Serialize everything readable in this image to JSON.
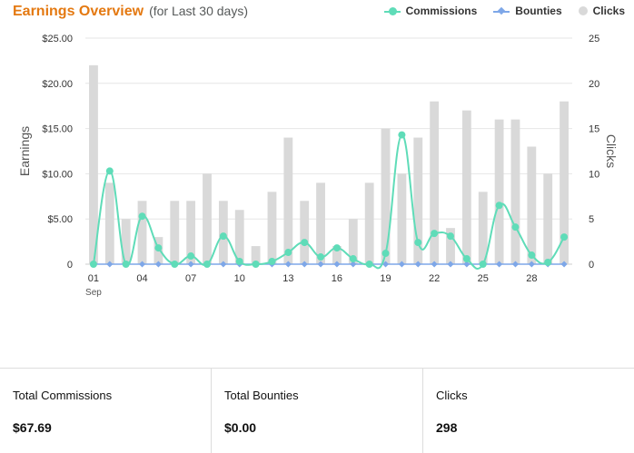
{
  "header": {
    "title": "Earnings Overview",
    "subtitle": "(for Last 30 days)"
  },
  "legend": [
    {
      "label": "Commissions",
      "color": "#5fdcb8",
      "symbol": "line-dot"
    },
    {
      "label": "Bounties",
      "color": "#7ea7e8",
      "symbol": "line-diamond"
    },
    {
      "label": "Clicks",
      "color": "#d9d9d9",
      "symbol": "dot"
    }
  ],
  "chart_data": {
    "type": "bar+line",
    "x": [
      "01",
      "02",
      "03",
      "04",
      "05",
      "06",
      "07",
      "08",
      "09",
      "10",
      "11",
      "12",
      "13",
      "14",
      "15",
      "16",
      "17",
      "18",
      "19",
      "20",
      "21",
      "22",
      "23",
      "24",
      "25",
      "26",
      "27",
      "28",
      "29",
      "30"
    ],
    "x_tick_labels": [
      "01",
      "04",
      "07",
      "10",
      "13",
      "16",
      "19",
      "22",
      "25",
      "28"
    ],
    "x_tick_sublabel": "Sep",
    "y_left": {
      "label": "Earnings",
      "ticks": [
        "0",
        "$5.00",
        "$10.00",
        "$15.00",
        "$20.00",
        "$25.00"
      ],
      "range": [
        0,
        25
      ]
    },
    "y_right": {
      "label": "Clicks",
      "ticks": [
        "0",
        "5",
        "10",
        "15",
        "20",
        "25"
      ],
      "range": [
        0,
        25
      ]
    },
    "series": [
      {
        "name": "Clicks",
        "type": "bar",
        "axis": "right",
        "color": "#d9d9d9",
        "values": [
          22,
          9,
          5,
          7,
          3,
          7,
          7,
          10,
          7,
          6,
          2,
          8,
          14,
          7,
          9,
          2,
          5,
          9,
          15,
          10,
          14,
          18,
          4,
          17,
          8,
          16,
          16,
          13,
          10,
          18
        ]
      },
      {
        "name": "Commissions",
        "type": "line",
        "axis": "left",
        "color": "#5fdcb8",
        "values": [
          0,
          10.3,
          0,
          5.3,
          1.8,
          0,
          0.9,
          0,
          3.1,
          0.3,
          0,
          0.3,
          1.3,
          2.4,
          0.8,
          1.8,
          0.6,
          0,
          1.2,
          14.3,
          2.4,
          3.4,
          3.1,
          0.6,
          0,
          6.5,
          4.1,
          1.0,
          0.2,
          3.0
        ]
      },
      {
        "name": "Bounties",
        "type": "line",
        "axis": "left",
        "color": "#7ea7e8",
        "values": [
          0,
          0,
          0,
          0,
          0,
          0,
          0,
          0,
          0,
          0,
          0,
          0,
          0,
          0,
          0,
          0,
          0,
          0,
          0,
          0,
          0,
          0,
          0,
          0,
          0,
          0,
          0,
          0,
          0,
          0
        ]
      }
    ],
    "grid": true,
    "legend_position": "top-right"
  },
  "summary": [
    {
      "label": "Total Commissions",
      "value": "$67.69"
    },
    {
      "label": "Total Bounties",
      "value": "$0.00"
    },
    {
      "label": "Clicks",
      "value": "298"
    }
  ]
}
